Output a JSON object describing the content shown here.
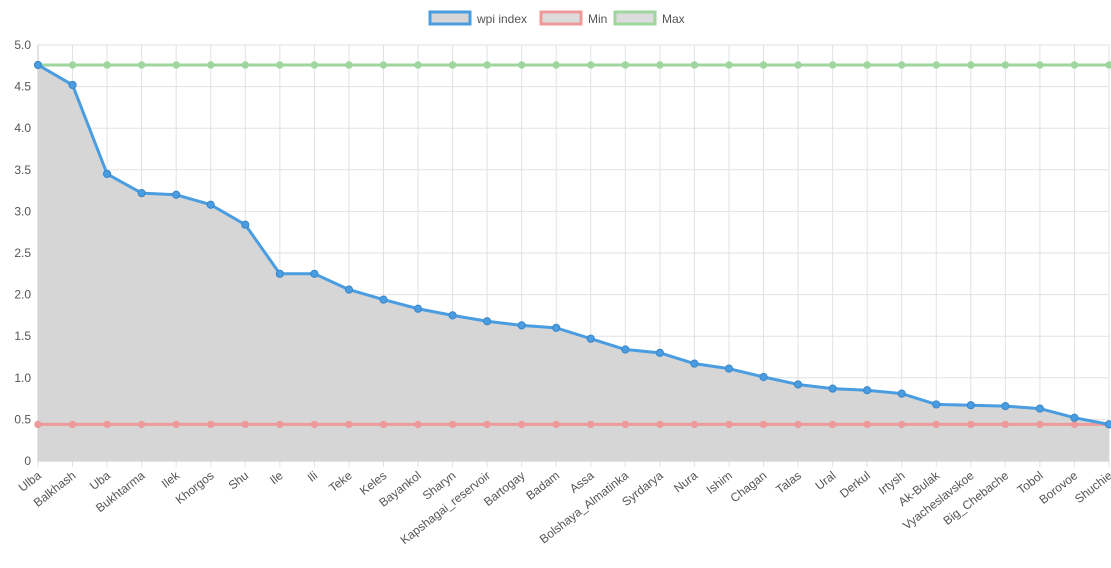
{
  "chart_data": {
    "type": "line",
    "title": "",
    "xlabel": "",
    "ylabel": "",
    "ylim": [
      0,
      5
    ],
    "yticks": [
      "0",
      "0.5",
      "1.0",
      "1.5",
      "2.0",
      "2.5",
      "3.0",
      "3.5",
      "4.0",
      "4.5",
      "5.0"
    ],
    "grid": true,
    "legend_position": "top-center",
    "categories": [
      "Ulba",
      "Balkhash",
      "Uba",
      "Bukhtarma",
      "Ilek",
      "Khorgos",
      "Shu",
      "Ile",
      "Ili",
      "Teke",
      "Keles",
      "Bayankol",
      "Sharyn",
      "Kapshagai_reservoir",
      "Bartogay",
      "Badam",
      "Assa",
      "Bolshaya_Almatinka",
      "Syrdarya",
      "Nura",
      "Ishim",
      "Chagan",
      "Talas",
      "Ural",
      "Derkul",
      "Irtysh",
      "Ak-Bulak",
      "Vyacheslavskoe",
      "Big_Chebache",
      "Tobol",
      "Borovoe",
      "Shuchie"
    ],
    "series": [
      {
        "name": "wpi index",
        "color": "#4a9de0",
        "fill": "#d6d6d6",
        "values": [
          4.76,
          4.52,
          3.45,
          3.22,
          3.2,
          3.08,
          2.84,
          2.25,
          2.25,
          2.06,
          1.94,
          1.83,
          1.75,
          1.68,
          1.63,
          1.6,
          1.47,
          1.34,
          1.3,
          1.17,
          1.11,
          1.01,
          0.92,
          0.87,
          0.85,
          0.81,
          0.68,
          0.67,
          0.66,
          0.63,
          0.52,
          0.44
        ]
      },
      {
        "name": "Min",
        "color": "#ef9a9a",
        "fill": "#dcdcdc",
        "values": [
          0.44,
          0.44,
          0.44,
          0.44,
          0.44,
          0.44,
          0.44,
          0.44,
          0.44,
          0.44,
          0.44,
          0.44,
          0.44,
          0.44,
          0.44,
          0.44,
          0.44,
          0.44,
          0.44,
          0.44,
          0.44,
          0.44,
          0.44,
          0.44,
          0.44,
          0.44,
          0.44,
          0.44,
          0.44,
          0.44,
          0.44,
          0.44
        ]
      },
      {
        "name": "Max",
        "color": "#9ed69e",
        "fill": "#dcdcdc",
        "values": [
          4.76,
          4.76,
          4.76,
          4.76,
          4.76,
          4.76,
          4.76,
          4.76,
          4.76,
          4.76,
          4.76,
          4.76,
          4.76,
          4.76,
          4.76,
          4.76,
          4.76,
          4.76,
          4.76,
          4.76,
          4.76,
          4.76,
          4.76,
          4.76,
          4.76,
          4.76,
          4.76,
          4.76,
          4.76,
          4.76,
          4.76,
          4.76
        ]
      }
    ]
  }
}
